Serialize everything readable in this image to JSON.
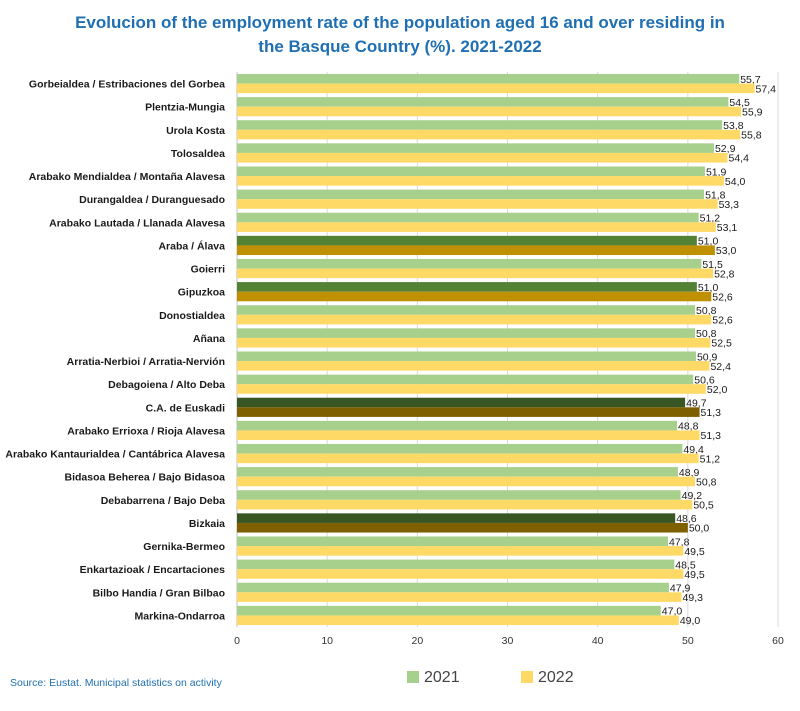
{
  "chart_data": {
    "type": "bar",
    "orientation": "horizontal",
    "title_lines": [
      "Evolucion of the employment rate of the population aged 16 and over residing in",
      "the Basque Country (%). 2021-2022"
    ],
    "source": "Source: Eustat. Municipal statistics on activity",
    "xlim": [
      0,
      60
    ],
    "xticks": [
      0,
      10,
      20,
      30,
      40,
      50,
      60
    ],
    "grid": true,
    "legend_position": "bottom",
    "categories": [
      "Gorbeialdea / Estribaciones del Gorbea",
      "Plentzia-Mungia",
      "Urola Kosta",
      "Tolosaldea",
      "Arabako Mendialdea / Montaña Alavesa",
      "Durangaldea / Duranguesado",
      "Arabako Lautada / Llanada Alavesa",
      "Araba / Álava",
      "Goierri",
      "Gipuzkoa",
      "Donostialdea",
      "Añana",
      "Arratia-Nerbioi / Arratia-Nervión",
      "Debagoiena / Alto Deba",
      "C.A. de Euskadi",
      "Arabako Errioxa / Rioja Alavesa",
      "Arabako Kantaurialdea / Cantábrica Alavesa",
      "Bidasoa Beherea / Bajo Bidasoa",
      "Debabarrena / Bajo Deba",
      "Bizkaia",
      "Gernika-Bermeo",
      "Enkartazioak / Encartaciones",
      "Bilbo Handia / Gran Bilbao",
      "Markina-Ondarroa"
    ],
    "series": [
      {
        "name": "2021",
        "color": "#a8d08d",
        "values": [
          55.7,
          54.5,
          53.8,
          52.9,
          51.9,
          51.8,
          51.2,
          51.0,
          51.5,
          51.0,
          50.8,
          50.8,
          50.9,
          50.6,
          49.7,
          48.8,
          49.4,
          48.9,
          49.2,
          48.6,
          47.8,
          48.5,
          47.9,
          47.0
        ],
        "labels": [
          "55,7",
          "54,5",
          "53,8",
          "52,9",
          "51,9",
          "51,8",
          "51,2",
          "51,0",
          "51,5",
          "51,0",
          "50,8",
          "50,8",
          "50,9",
          "50,6",
          "49,7",
          "48,8",
          "49,4",
          "48,9",
          "49,2",
          "48,6",
          "47,8",
          "48,5",
          "47,9",
          "47,0"
        ]
      },
      {
        "name": "2022",
        "color": "#ffd966",
        "values": [
          57.4,
          55.9,
          55.8,
          54.4,
          54.0,
          53.3,
          53.1,
          53.0,
          52.8,
          52.6,
          52.6,
          52.5,
          52.4,
          52.0,
          51.3,
          51.3,
          51.2,
          50.8,
          50.5,
          50.0,
          49.5,
          49.5,
          49.3,
          49.0
        ],
        "labels": [
          "57,4",
          "55,9",
          "55,8",
          "54,4",
          "54,0",
          "53,3",
          "53,1",
          "53,0",
          "52,8",
          "52,6",
          "52,6",
          "52,5",
          "52,4",
          "52,0",
          "51,3",
          "51,3",
          "51,2",
          "50,8",
          "50,5",
          "50,0",
          "49,5",
          "49,5",
          "49,3",
          "49,0"
        ]
      }
    ],
    "highlight_categories": [
      "Araba / Álava",
      "Gipuzkoa",
      "C.A. de Euskadi",
      "Bizkaia"
    ],
    "highlight_colors": {
      "Araba / Álava": [
        "#548235",
        "#bf9000"
      ],
      "Gipuzkoa": [
        "#548235",
        "#bf9000"
      ],
      "C.A. de Euskadi": [
        "#375623",
        "#7f6000"
      ],
      "Bizkaia": [
        "#375623",
        "#7f6000"
      ]
    }
  }
}
